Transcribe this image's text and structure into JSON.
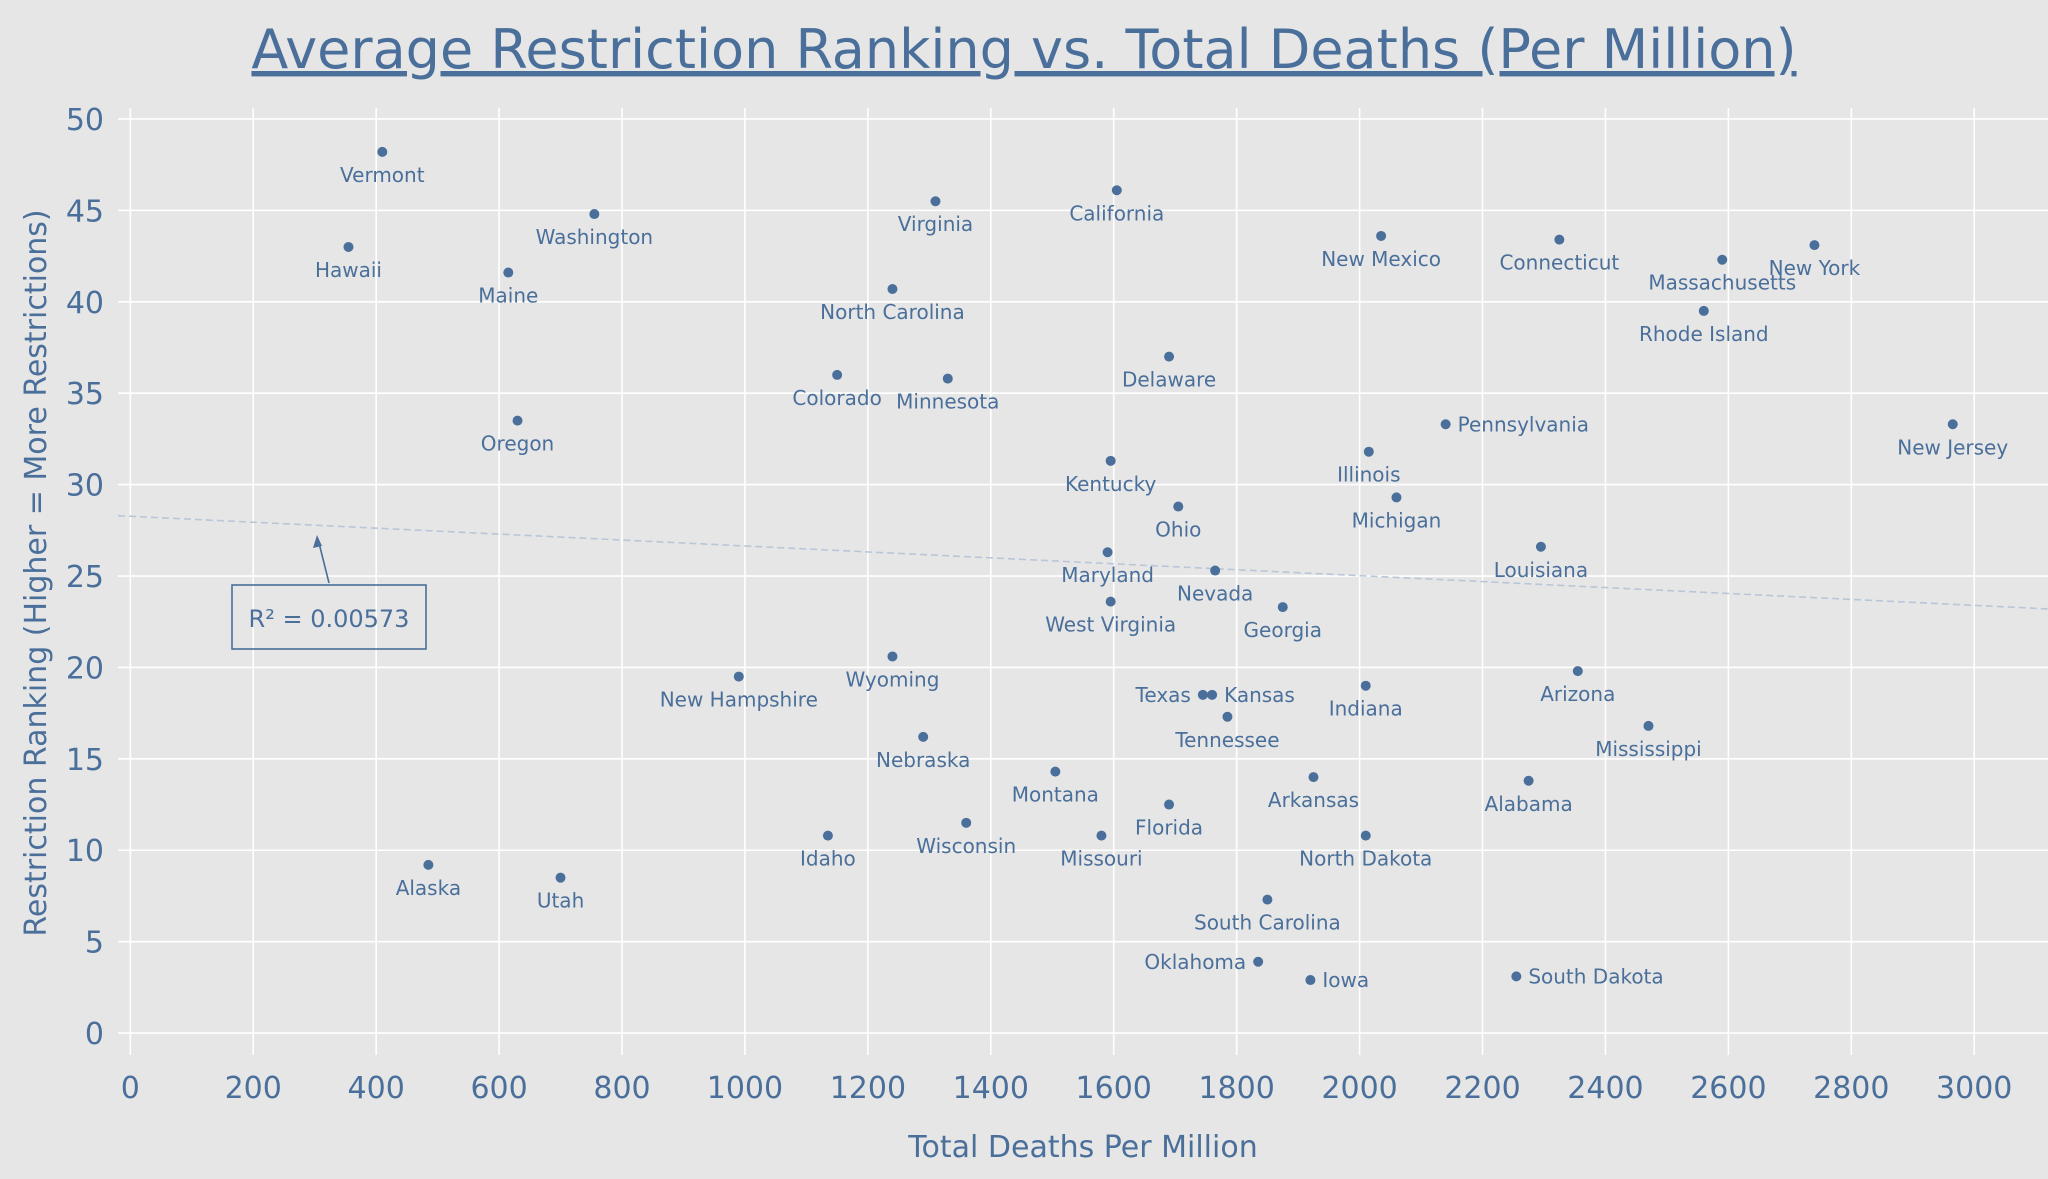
{
  "chart_data": {
    "type": "scatter",
    "title": "Average Restriction Ranking vs. Total Deaths (Per Million)",
    "xlabel": "Total Deaths Per Million",
    "ylabel": "Restriction Ranking (Higher = More Restrictions)",
    "xlim": [
      -20,
      3120
    ],
    "ylim": [
      -1.2,
      50.6
    ],
    "xticks": [
      0,
      200,
      400,
      600,
      800,
      1000,
      1200,
      1400,
      1600,
      1800,
      2000,
      2200,
      2400,
      2600,
      2800,
      3000
    ],
    "yticks": [
      0,
      5,
      10,
      15,
      20,
      25,
      30,
      35,
      40,
      45,
      50
    ],
    "grid": true,
    "marker_color": "#4a6f9a",
    "trendline": {
      "color": "#b9c6d8",
      "style": "dashed",
      "x": [
        -20,
        3120
      ],
      "y": [
        28.3,
        23.2
      ],
      "annotation": "R² = 0.00573"
    },
    "points": [
      {
        "label": "Vermont",
        "x": 410,
        "y": 48.2,
        "pos": "below"
      },
      {
        "label": "Hawaii",
        "x": 355,
        "y": 43.0,
        "pos": "below"
      },
      {
        "label": "Washington",
        "x": 755,
        "y": 44.8,
        "pos": "below"
      },
      {
        "label": "Maine",
        "x": 615,
        "y": 41.6,
        "pos": "below"
      },
      {
        "label": "Oregon",
        "x": 630,
        "y": 33.5,
        "pos": "below"
      },
      {
        "label": "Alaska",
        "x": 485,
        "y": 9.2,
        "pos": "below"
      },
      {
        "label": "Utah",
        "x": 700,
        "y": 8.5,
        "pos": "below"
      },
      {
        "label": "New Hampshire",
        "x": 990,
        "y": 19.5,
        "pos": "below"
      },
      {
        "label": "Colorado",
        "x": 1150,
        "y": 36.0,
        "pos": "below"
      },
      {
        "label": "Idaho",
        "x": 1135,
        "y": 10.8,
        "pos": "below"
      },
      {
        "label": "North Carolina",
        "x": 1240,
        "y": 40.7,
        "pos": "below"
      },
      {
        "label": "Wyoming",
        "x": 1240,
        "y": 20.6,
        "pos": "below"
      },
      {
        "label": "Nebraska",
        "x": 1290,
        "y": 16.2,
        "pos": "below"
      },
      {
        "label": "Virginia",
        "x": 1310,
        "y": 45.5,
        "pos": "below"
      },
      {
        "label": "Minnesota",
        "x": 1330,
        "y": 35.8,
        "pos": "below"
      },
      {
        "label": "Wisconsin",
        "x": 1360,
        "y": 11.5,
        "pos": "below"
      },
      {
        "label": "Montana",
        "x": 1505,
        "y": 14.3,
        "pos": "below"
      },
      {
        "label": "Missouri",
        "x": 1580,
        "y": 10.8,
        "pos": "below"
      },
      {
        "label": "California",
        "x": 1605,
        "y": 46.1,
        "pos": "below"
      },
      {
        "label": "Kentucky",
        "x": 1595,
        "y": 31.3,
        "pos": "below"
      },
      {
        "label": "Maryland",
        "x": 1590,
        "y": 26.3,
        "pos": "below"
      },
      {
        "label": "West Virginia",
        "x": 1595,
        "y": 23.6,
        "pos": "below"
      },
      {
        "label": "Delaware",
        "x": 1690,
        "y": 37.0,
        "pos": "below"
      },
      {
        "label": "Ohio",
        "x": 1705,
        "y": 28.8,
        "pos": "below"
      },
      {
        "label": "Florida",
        "x": 1690,
        "y": 12.5,
        "pos": "below"
      },
      {
        "label": "Texas",
        "x": 1745,
        "y": 18.5,
        "pos": "left"
      },
      {
        "label": "Kansas",
        "x": 1760,
        "y": 18.5,
        "pos": "right"
      },
      {
        "label": "Nevada",
        "x": 1765,
        "y": 25.3,
        "pos": "below"
      },
      {
        "label": "Tennessee",
        "x": 1785,
        "y": 17.3,
        "pos": "below"
      },
      {
        "label": "South Carolina",
        "x": 1850,
        "y": 7.3,
        "pos": "below"
      },
      {
        "label": "Oklahoma",
        "x": 1835,
        "y": 3.9,
        "pos": "left"
      },
      {
        "label": "Georgia",
        "x": 1875,
        "y": 23.3,
        "pos": "below"
      },
      {
        "label": "Iowa",
        "x": 1920,
        "y": 2.9,
        "pos": "right"
      },
      {
        "label": "Arkansas",
        "x": 1925,
        "y": 14.0,
        "pos": "below"
      },
      {
        "label": "Indiana",
        "x": 2010,
        "y": 19.0,
        "pos": "below"
      },
      {
        "label": "North Dakota",
        "x": 2010,
        "y": 10.8,
        "pos": "below"
      },
      {
        "label": "Illinois",
        "x": 2015,
        "y": 31.8,
        "pos": "below"
      },
      {
        "label": "New Mexico",
        "x": 2035,
        "y": 43.6,
        "pos": "below"
      },
      {
        "label": "Michigan",
        "x": 2060,
        "y": 29.3,
        "pos": "below"
      },
      {
        "label": "Pennsylvania",
        "x": 2140,
        "y": 33.3,
        "pos": "right"
      },
      {
        "label": "South Dakota",
        "x": 2255,
        "y": 3.1,
        "pos": "right"
      },
      {
        "label": "Alabama",
        "x": 2275,
        "y": 13.8,
        "pos": "below"
      },
      {
        "label": "Louisiana",
        "x": 2295,
        "y": 26.6,
        "pos": "below"
      },
      {
        "label": "Connecticut",
        "x": 2325,
        "y": 43.4,
        "pos": "below"
      },
      {
        "label": "Arizona",
        "x": 2355,
        "y": 19.8,
        "pos": "below"
      },
      {
        "label": "Mississippi",
        "x": 2470,
        "y": 16.8,
        "pos": "below"
      },
      {
        "label": "Rhode Island",
        "x": 2560,
        "y": 39.5,
        "pos": "below"
      },
      {
        "label": "Massachusetts",
        "x": 2590,
        "y": 42.3,
        "pos": "below"
      },
      {
        "label": "New York",
        "x": 2740,
        "y": 43.1,
        "pos": "below"
      },
      {
        "label": "New Jersey",
        "x": 2965,
        "y": 33.3,
        "pos": "below"
      }
    ]
  }
}
